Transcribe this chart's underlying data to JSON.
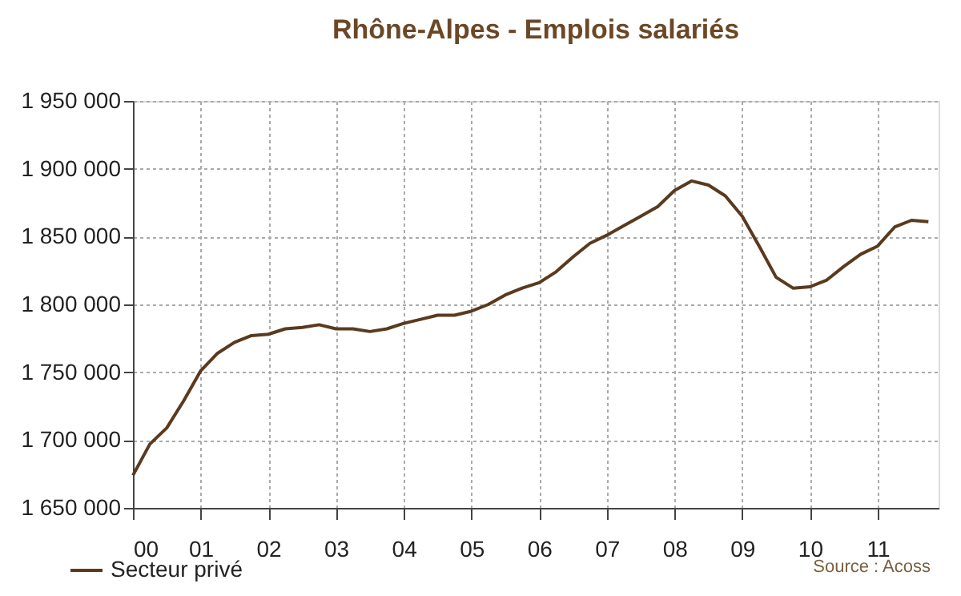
{
  "chart_data": {
    "type": "line",
    "title": "Rhône-Alpes - Emplois salariés",
    "x": [
      2000,
      2000.25,
      2000.5,
      2000.75,
      2001,
      2001.25,
      2001.5,
      2001.75,
      2002,
      2002.25,
      2002.5,
      2002.75,
      2003,
      2003.25,
      2003.5,
      2003.75,
      2004,
      2004.25,
      2004.5,
      2004.75,
      2005,
      2005.25,
      2005.5,
      2005.75,
      2006,
      2006.25,
      2006.5,
      2006.75,
      2007,
      2007.25,
      2007.5,
      2007.75,
      2008,
      2008.25,
      2008.5,
      2008.75,
      2009,
      2009.25,
      2009.5,
      2009.75,
      2010,
      2010.25,
      2010.5,
      2010.75,
      2011,
      2011.25,
      2011.5,
      2011.75
    ],
    "series": [
      {
        "name": "Secteur privé",
        "color": "#5a3a1e",
        "values": [
          1674000,
          1697000,
          1709000,
          1729000,
          1751000,
          1764000,
          1772000,
          1777000,
          1778000,
          1782000,
          1783000,
          1785000,
          1782000,
          1782000,
          1780000,
          1782000,
          1786000,
          1789000,
          1792000,
          1792000,
          1795000,
          1800000,
          1807000,
          1812000,
          1816000,
          1824000,
          1835000,
          1845000,
          1851000,
          1858000,
          1865000,
          1872000,
          1884000,
          1891000,
          1888000,
          1880000,
          1865000,
          1843000,
          1820000,
          1812000,
          1813000,
          1818000,
          1828000,
          1837000,
          1843000,
          1857000,
          1862000,
          1861000
        ]
      }
    ],
    "xlim": [
      2000,
      2011.9
    ],
    "xticks": [
      {
        "value": 2000,
        "label": "00"
      },
      {
        "value": 2001,
        "label": "01"
      },
      {
        "value": 2002,
        "label": "02"
      },
      {
        "value": 2003,
        "label": "03"
      },
      {
        "value": 2004,
        "label": "04"
      },
      {
        "value": 2005,
        "label": "05"
      },
      {
        "value": 2006,
        "label": "06"
      },
      {
        "value": 2007,
        "label": "07"
      },
      {
        "value": 2008,
        "label": "08"
      },
      {
        "value": 2009,
        "label": "09"
      },
      {
        "value": 2010,
        "label": "10"
      },
      {
        "value": 2011,
        "label": "11"
      }
    ],
    "ylim": [
      1650000,
      1950000
    ],
    "yticks": [
      {
        "value": 1650000,
        "label": "1 650 000"
      },
      {
        "value": 1700000,
        "label": "1 700 000"
      },
      {
        "value": 1750000,
        "label": "1 750 000"
      },
      {
        "value": 1800000,
        "label": "1 800 000"
      },
      {
        "value": 1850000,
        "label": "1 850 000"
      },
      {
        "value": 1900000,
        "label": "1 900 000"
      },
      {
        "value": 1950000,
        "label": "1 950 000"
      }
    ],
    "grid": true,
    "legend": "bottom left",
    "marker": "none",
    "line_style": "solid",
    "annotations": [
      "Source : Acoss"
    ]
  }
}
